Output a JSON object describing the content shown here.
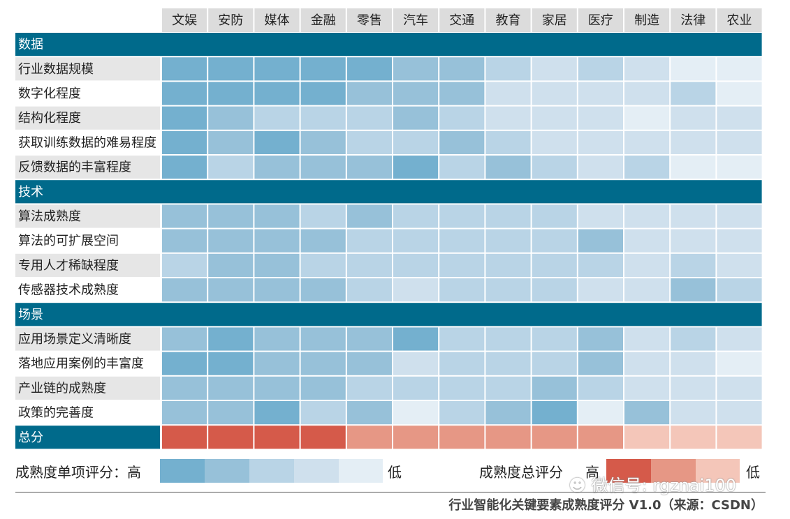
{
  "chart_data": {
    "type": "heatmap",
    "title": "",
    "columns": [
      "文娱",
      "安防",
      "媒体",
      "金融",
      "零售",
      "汽车",
      "交通",
      "教育",
      "家居",
      "医疗",
      "制造",
      "法律",
      "农业"
    ],
    "groups": [
      {
        "label": "数据",
        "rows": [
          {
            "label": "行业数据规模",
            "levels": [
              1,
              1,
              1,
              1,
              1,
              2,
              2,
              3,
              4,
              3,
              4,
              5,
              5
            ]
          },
          {
            "label": "数字化程度",
            "levels": [
              1,
              1,
              1,
              1,
              2,
              2,
              2,
              4,
              4,
              4,
              4,
              3,
              5
            ]
          },
          {
            "label": "结构化程度",
            "levels": [
              1,
              2,
              3,
              3,
              3,
              2,
              3,
              4,
              4,
              4,
              5,
              4,
              4
            ]
          },
          {
            "label": "获取训练数据的难易程度",
            "levels": [
              1,
              2,
              1,
              2,
              3,
              3,
              2,
              3,
              4,
              4,
              4,
              4,
              4
            ]
          },
          {
            "label": "反馈数据的丰富程度",
            "levels": [
              1,
              3,
              2,
              2,
              2,
              1,
              3,
              2,
              3,
              4,
              3,
              5,
              5
            ]
          }
        ]
      },
      {
        "label": "技术",
        "rows": [
          {
            "label": "算法成熟度",
            "levels": [
              2,
              2,
              2,
              3,
              2,
              3,
              3,
              3,
              3,
              4,
              4,
              4,
              4
            ]
          },
          {
            "label": "算法的可扩展空间",
            "levels": [
              2,
              2,
              2,
              2,
              3,
              3,
              3,
              3,
              3,
              2,
              4,
              4,
              4
            ]
          },
          {
            "label": "专用人才稀缺程度",
            "levels": [
              3,
              2,
              2,
              3,
              3,
              3,
              3,
              3,
              3,
              3,
              4,
              3,
              4
            ]
          },
          {
            "label": "传感器技术成熟度",
            "levels": [
              2,
              2,
              2,
              2,
              3,
              4,
              3,
              3,
              3,
              4,
              4,
              2,
              3
            ]
          }
        ]
      },
      {
        "label": "场景",
        "rows": [
          {
            "label": "应用场景定义清晰度",
            "levels": [
              2,
              1,
              2,
              2,
              2,
              1,
              3,
              3,
              3,
              2,
              4,
              3,
              4
            ]
          },
          {
            "label": "落地应用案例的丰富度",
            "levels": [
              1,
              1,
              2,
              2,
              2,
              4,
              3,
              3,
              3,
              2,
              4,
              4,
              5
            ]
          },
          {
            "label": "产业链的成熟度",
            "levels": [
              2,
              2,
              2,
              2,
              3,
              3,
              3,
              3,
              2,
              3,
              4,
              4,
              4
            ]
          },
          {
            "label": "政策的完善度",
            "levels": [
              2,
              2,
              1,
              3,
              2,
              5,
              3,
              2,
              1,
              5,
              2,
              4,
              4
            ]
          }
        ]
      }
    ],
    "total": {
      "label": "总分",
      "levels": [
        1,
        1,
        1,
        1,
        2,
        2,
        2,
        2,
        2,
        2,
        3,
        3,
        3
      ]
    },
    "levels_note": "1 = 高 … 5 = 低"
  },
  "legend": {
    "item_label": "成熟度单项评分：高",
    "item_low": "低",
    "total_label": "成熟度总评分",
    "total_high": "高",
    "total_low": "低"
  },
  "colors": {
    "header_band": "#006a8b",
    "header_cell": "#dcdcdc",
    "row_label_even": "#e6e6e6",
    "row_label_odd": "#ffffff",
    "blue_levels": [
      "#74b0cf",
      "#97c1d9",
      "#b9d4e6",
      "#cfe0ed",
      "#e4eef5"
    ],
    "red_levels": [
      "#d55a4a",
      "#e69785",
      "#f4c6b9"
    ]
  },
  "watermark": "微信号: rgznai100",
  "caption": "行业智能化关键要素成熟度评分 V1.0（来源：CSDN）"
}
